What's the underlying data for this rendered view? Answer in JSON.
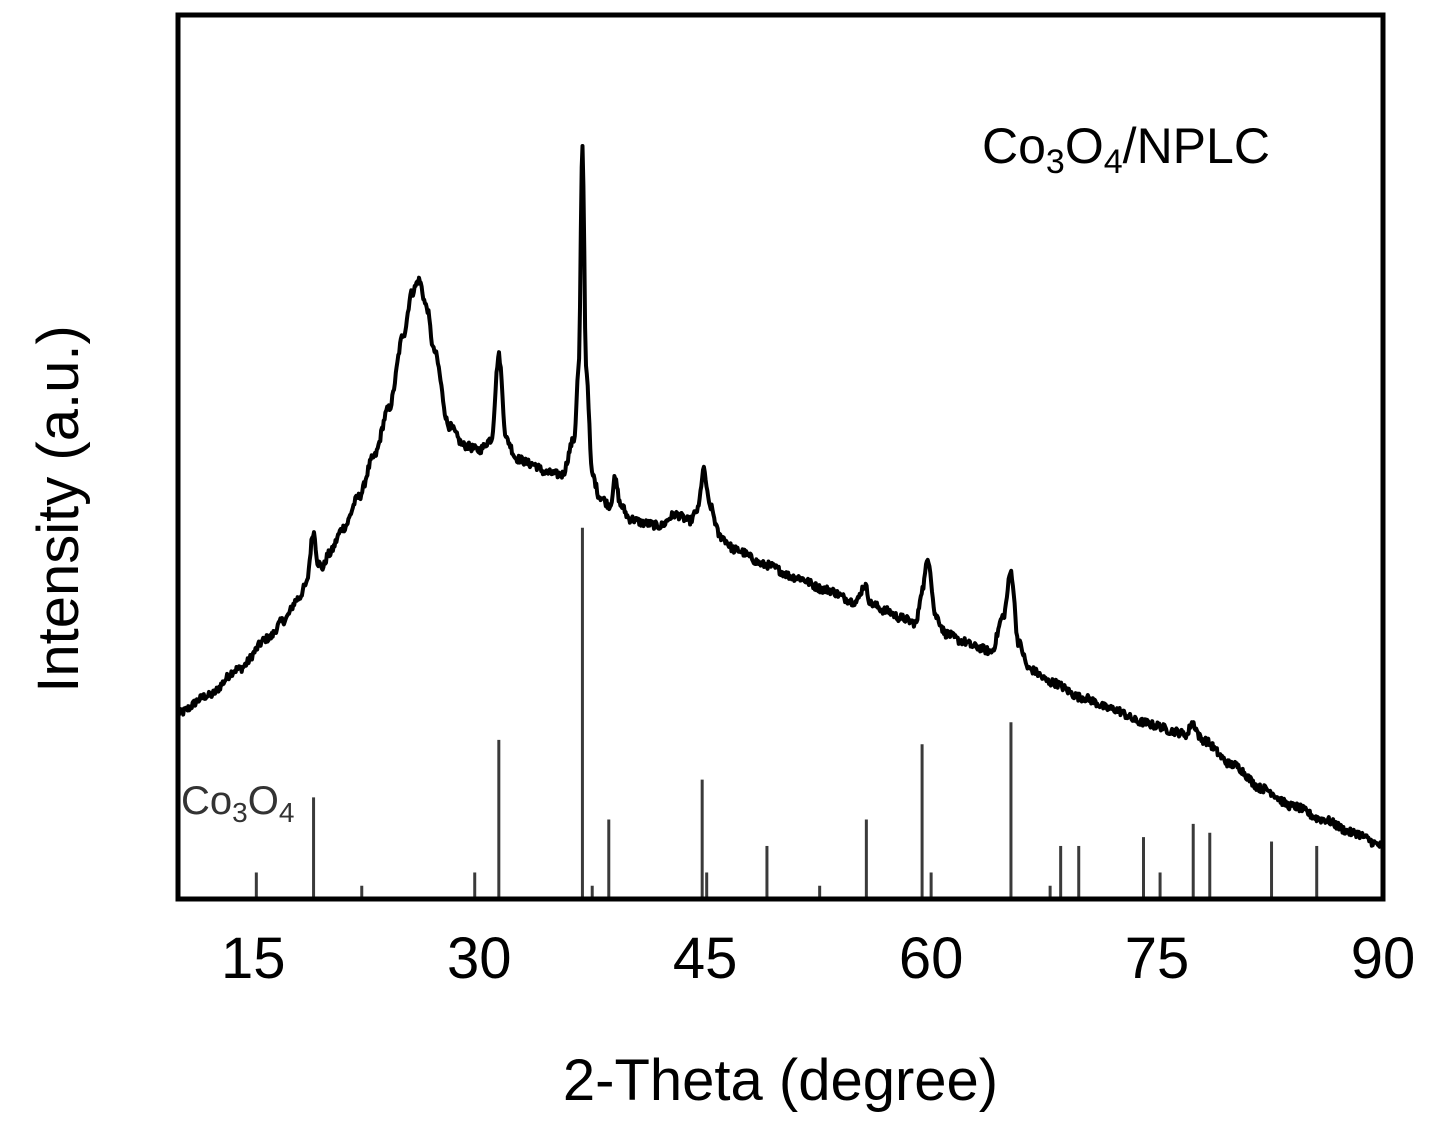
{
  "chart_data": {
    "type": "line",
    "xlabel": "2-Theta (degree)",
    "ylabel": "Intensity (a.u.)",
    "xlim": [
      10,
      90
    ],
    "ylim": [
      0,
      100
    ],
    "x_ticks": [
      15,
      30,
      45,
      60,
      75,
      90
    ],
    "grid": false,
    "legend": "none",
    "annotations": {
      "sample": {
        "main1": "Co",
        "sub1": "3",
        "main2": "O",
        "sub2": "4",
        "main3": "/NPLC"
      },
      "reference": {
        "main1": "Co",
        "sub1": "3",
        "main2": "O",
        "sub2": "4"
      }
    },
    "series": [
      {
        "style": "xrd-pattern",
        "color": "#000000",
        "x": [
          10,
          12,
          14,
          16,
          17,
          18,
          18.5,
          19.0,
          19.3,
          19.6,
          20,
          21,
          22,
          23,
          24,
          25,
          25.5,
          26.0,
          26.5,
          27,
          28,
          29,
          30,
          30.8,
          31.3,
          31.8,
          32.5,
          33.5,
          34.5,
          35.5,
          36.3,
          36.6,
          36.85,
          37.1,
          37.5,
          38,
          38.7,
          39.0,
          39.4,
          40,
          41,
          42,
          43,
          44,
          44.5,
          44.9,
          45.3,
          46,
          47,
          49,
          51,
          53,
          55,
          55.6,
          56,
          57,
          58,
          59,
          59.4,
          59.8,
          60.3,
          61,
          62,
          63,
          64,
          64.8,
          65.3,
          65.8,
          66.5,
          68,
          70,
          72,
          74,
          75,
          76,
          77,
          77.3,
          78,
          80,
          82,
          84,
          86,
          88,
          90
        ],
        "y": [
          21,
          23,
          26,
          29.5,
          31.5,
          34,
          35.5,
          41.5,
          38,
          37.5,
          39,
          42,
          45.5,
          50,
          55.5,
          64,
          68.5,
          70,
          67,
          62,
          53.5,
          51.3,
          50.8,
          52,
          61.5,
          52,
          49.8,
          49.2,
          48.2,
          48,
          52,
          60,
          85,
          60,
          48,
          45.5,
          44.5,
          47.5,
          44.5,
          43,
          42.5,
          42.2,
          43.5,
          42.8,
          44,
          48.5,
          44.5,
          41,
          39.5,
          37.8,
          36.4,
          35,
          33.6,
          35.5,
          33.4,
          32.6,
          31.8,
          31.2,
          35,
          38.5,
          32,
          30,
          29.2,
          28.5,
          28,
          32,
          37,
          29,
          26,
          24.5,
          22.8,
          21.5,
          20,
          19.6,
          19.0,
          18.6,
          20,
          18,
          15.2,
          12.5,
          10.5,
          9,
          7.5,
          6
        ]
      },
      {
        "name": "Co3O4",
        "style": "stick",
        "color": "#3a3a3a",
        "x": [
          15.2,
          19.0,
          22.2,
          29.7,
          31.3,
          36.85,
          37.5,
          38.6,
          44.8,
          45.1,
          49.1,
          52.6,
          55.7,
          59.4,
          60.0,
          65.3,
          67.9,
          68.6,
          69.8,
          74.1,
          75.2,
          77.4,
          78.5,
          82.6,
          85.6
        ],
        "values": [
          3.0,
          11.5,
          1.5,
          3.0,
          18.0,
          42.0,
          1.5,
          9.0,
          13.5,
          3.0,
          6.0,
          1.5,
          9.0,
          17.5,
          3.0,
          20.0,
          1.5,
          6.0,
          6.0,
          7.0,
          3.0,
          8.5,
          7.5,
          6.5,
          6.0
        ]
      }
    ]
  }
}
